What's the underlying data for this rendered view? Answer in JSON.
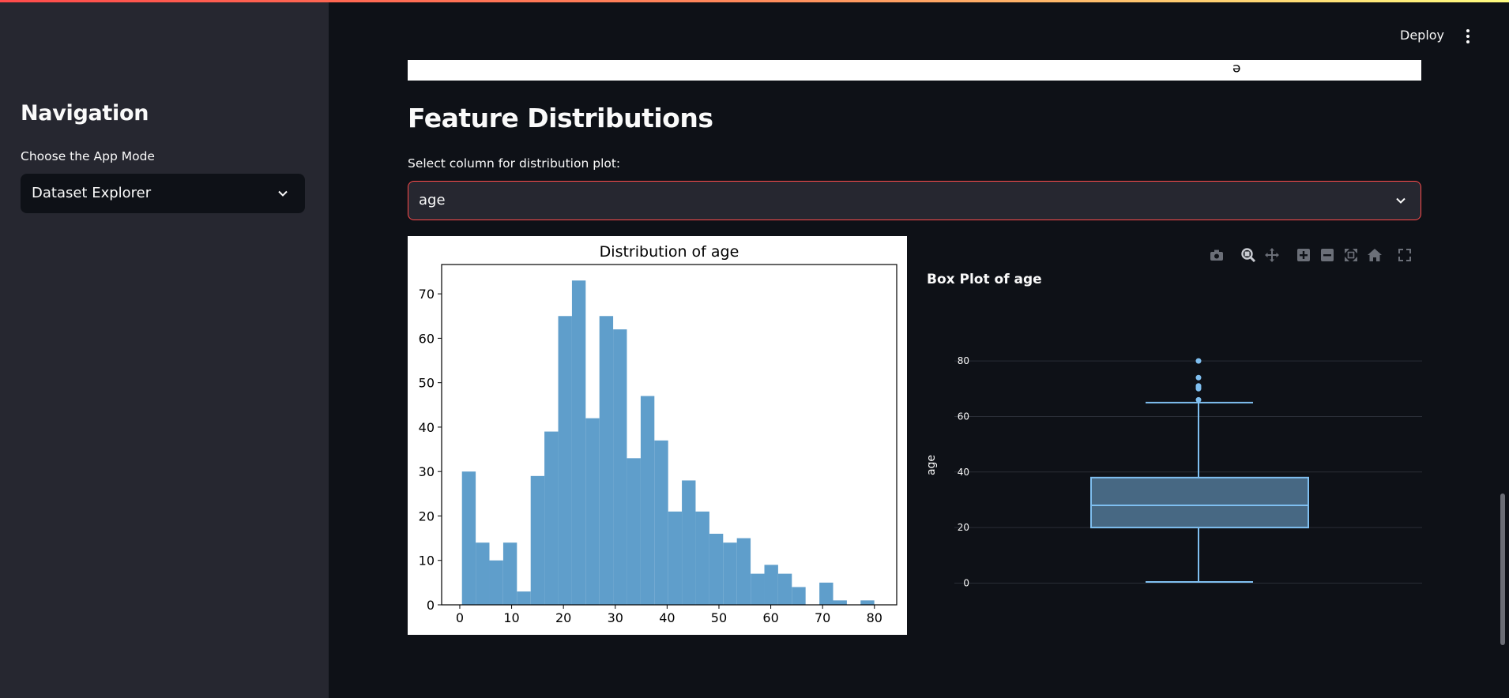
{
  "header": {
    "deploy_label": "Deploy",
    "menu_icon": "kebab-menu-icon"
  },
  "sidebar": {
    "title": "Navigation",
    "mode_label": "Choose the App Mode",
    "mode_value": "Dataset Explorer"
  },
  "main": {
    "image_strip_glyph": "e",
    "section_title": "Feature Distributions",
    "column_label": "Select column for distribution plot:",
    "column_value": "age"
  },
  "colors": {
    "accent": "#ff4b4b",
    "hist_bar": "#5f9ecb",
    "box": "#7fbff0",
    "background": "#0e1117",
    "sidebar": "#262730"
  },
  "chart_data": [
    {
      "type": "bar",
      "title": "Distribution of age",
      "xlabel": "",
      "ylabel": "",
      "bin_start": [
        0.42,
        3.07,
        5.72,
        8.38,
        11.03,
        13.68,
        16.33,
        18.99,
        21.64,
        24.29,
        26.94,
        29.59,
        32.25,
        34.9,
        37.55,
        40.2,
        42.85,
        45.51,
        48.16,
        50.81,
        53.46,
        56.12,
        58.77,
        61.42,
        64.07,
        66.72,
        69.38,
        72.03,
        74.68,
        77.33
      ],
      "values": [
        30,
        14,
        10,
        14,
        3,
        29,
        39,
        65,
        73,
        42,
        65,
        62,
        33,
        47,
        37,
        21,
        28,
        21,
        16,
        14,
        15,
        7,
        9,
        7,
        4,
        0,
        5,
        1,
        0,
        1
      ],
      "xticks": [
        0,
        10,
        20,
        30,
        40,
        50,
        60,
        70,
        80
      ],
      "yticks": [
        0,
        10,
        20,
        30,
        40,
        50,
        60,
        70
      ],
      "xlim": [
        -3.5,
        84.3
      ],
      "ylim": [
        0,
        76.6
      ]
    },
    {
      "type": "box",
      "title": "Box Plot of age",
      "ylabel": "age",
      "min": 0.42,
      "q1": 20,
      "median": 28,
      "q3": 38,
      "upper_fence": 65,
      "outliers": [
        66,
        70,
        70.5,
        71,
        74,
        80
      ],
      "yticks": [
        0,
        20,
        40,
        60,
        80
      ],
      "ylim": [
        -3,
        88
      ],
      "modebar_icons": [
        "camera-icon",
        "zoom-icon",
        "pan-icon",
        "zoom-in-icon",
        "zoom-out-icon",
        "autoscale-icon",
        "reset-axes-icon",
        "fullscreen-icon"
      ]
    }
  ]
}
